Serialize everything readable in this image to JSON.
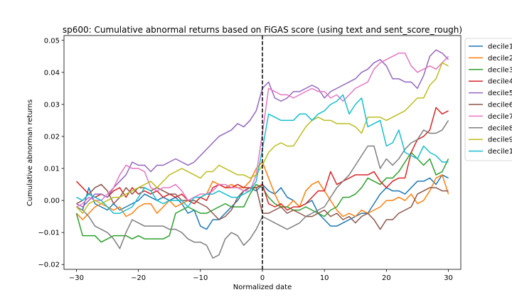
{
  "chart_data": {
    "type": "line",
    "title": "sp600: Cumulative abnormal returns based on FiGAS score (using text and sent_score_rough)",
    "xlabel": "Normalized date",
    "ylabel": "Cumulative abnorman returns",
    "xlim": [
      -32,
      32
    ],
    "ylim": [
      -0.0215,
      0.0515
    ],
    "xticks": [
      -30,
      -20,
      -10,
      0,
      10,
      20,
      30
    ],
    "yticks": [
      -0.02,
      -0.01,
      0.0,
      0.01,
      0.02,
      0.03,
      0.04,
      0.05
    ],
    "ytick_labels": [
      "−0.02",
      "−0.01",
      "0.00",
      "0.01",
      "0.02",
      "0.03",
      "0.04",
      "0.05"
    ],
    "xtick_labels": [
      "−30",
      "−20",
      "−10",
      "0",
      "10",
      "20",
      "30"
    ],
    "vline": {
      "x": 0,
      "style": "dashed",
      "color": "#000000"
    },
    "grid": false,
    "legend_placement": "right, outside top",
    "x": [
      -30,
      -29,
      -28,
      -27,
      -26,
      -25,
      -24,
      -23,
      -22,
      -21,
      -20,
      -19,
      -18,
      -17,
      -16,
      -15,
      -14,
      -13,
      -12,
      -11,
      -10,
      -9,
      -8,
      -7,
      -6,
      -5,
      -4,
      -3,
      -2,
      -1,
      0,
      1,
      2,
      3,
      4,
      5,
      6,
      7,
      8,
      9,
      10,
      11,
      12,
      13,
      14,
      15,
      16,
      17,
      18,
      19,
      20,
      21,
      22,
      23,
      24,
      25,
      26,
      27,
      28,
      29,
      30
    ],
    "series": [
      {
        "name": "decile1",
        "color": "#1f77b4",
        "values": [
          -0.002,
          -0.003,
          0.004,
          -0.001,
          -0.002,
          -0.003,
          -0.001,
          -0.003,
          -0.002,
          -0.001,
          0.0,
          0.002,
          0.001,
          0.0,
          0.001,
          0.0,
          0.001,
          -0.001,
          -0.004,
          -0.003,
          -0.008,
          -0.009,
          -0.006,
          -0.006,
          -0.004,
          -0.002,
          0.0,
          0.003,
          0.004,
          0.003,
          0.005,
          0.003,
          0.002,
          0.004,
          0.001,
          0.0,
          -0.002,
          -0.001,
          0.0,
          -0.004,
          -0.006,
          -0.008,
          -0.008,
          -0.007,
          -0.006,
          -0.005,
          -0.004,
          -0.004,
          -0.001,
          0.002,
          0.004,
          0.003,
          0.003,
          0.002,
          0.004,
          0.006,
          0.006,
          0.007,
          0.005,
          0.008,
          0.007
        ]
      },
      {
        "name": "decile2",
        "color": "#ff7f0e",
        "values": [
          -0.004,
          -0.006,
          -0.004,
          -0.002,
          -0.001,
          -0.002,
          -0.003,
          -0.002,
          -0.005,
          -0.004,
          -0.002,
          -0.001,
          -0.001,
          -0.004,
          -0.002,
          0.0,
          -0.002,
          -0.001,
          0.0,
          -0.001,
          0.001,
          0.002,
          0.006,
          0.005,
          0.004,
          0.005,
          0.004,
          0.004,
          0.006,
          0.01,
          0.012,
          0.007,
          0.002,
          -0.002,
          -0.002,
          0.0,
          -0.002,
          0.003,
          0.005,
          0.006,
          0.003,
          0.0,
          -0.003,
          -0.005,
          -0.004,
          -0.005,
          -0.003,
          -0.004,
          -0.003,
          -0.002,
          0.0,
          0.0,
          0.001,
          0.0,
          0.002,
          -0.001,
          0.0,
          0.003,
          0.007,
          0.008,
          0.002
        ]
      },
      {
        "name": "decile3",
        "color": "#2ca02c",
        "values": [
          -0.004,
          -0.011,
          -0.011,
          -0.011,
          -0.013,
          -0.012,
          -0.011,
          -0.011,
          -0.011,
          -0.012,
          -0.011,
          -0.012,
          -0.012,
          -0.012,
          -0.012,
          -0.011,
          -0.004,
          -0.003,
          -0.002,
          -0.003,
          -0.004,
          -0.004,
          -0.003,
          -0.002,
          -0.001,
          -0.002,
          -0.002,
          -0.002,
          0.002,
          0.005,
          0.004,
          0.001,
          -0.001,
          -0.002,
          -0.002,
          -0.003,
          -0.003,
          -0.002,
          -0.003,
          -0.004,
          -0.005,
          -0.003,
          -0.002,
          0.001,
          0.001,
          0.002,
          0.004,
          0.007,
          0.006,
          0.005,
          0.007,
          0.007,
          0.009,
          0.012,
          0.015,
          0.013,
          0.011,
          0.013,
          0.008,
          0.009,
          0.013
        ]
      },
      {
        "name": "decile4",
        "color": "#d62728",
        "values": [
          0.006,
          0.004,
          0.002,
          0.001,
          0.002,
          0.001,
          0.003,
          0.004,
          0.001,
          0.004,
          0.002,
          0.003,
          0.002,
          0.003,
          0.001,
          0.002,
          0.001,
          0.002,
          0.0,
          -0.001,
          0.001,
          0.0,
          0.004,
          0.005,
          0.004,
          0.004,
          0.005,
          0.004,
          0.004,
          0.004,
          0.005,
          -0.001,
          -0.002,
          -0.001,
          -0.003,
          -0.002,
          -0.002,
          -0.001,
          0.001,
          0.003,
          0.003,
          0.009,
          0.005,
          0.006,
          0.007,
          0.008,
          0.008,
          0.008,
          0.009,
          0.006,
          0.004,
          0.006,
          0.007,
          0.007,
          0.015,
          0.019,
          0.02,
          0.022,
          0.029,
          0.027,
          0.028
        ]
      },
      {
        "name": "decile5",
        "color": "#9467bd",
        "values": [
          -0.001,
          -0.002,
          0.0,
          0.002,
          0.002,
          0.001,
          0.004,
          0.006,
          0.008,
          0.012,
          0.011,
          0.011,
          0.009,
          0.011,
          0.011,
          0.012,
          0.013,
          0.012,
          0.011,
          0.012,
          0.014,
          0.016,
          0.018,
          0.02,
          0.021,
          0.022,
          0.024,
          0.023,
          0.025,
          0.028,
          0.035,
          0.037,
          0.032,
          0.031,
          0.032,
          0.034,
          0.034,
          0.035,
          0.036,
          0.035,
          0.032,
          0.034,
          0.035,
          0.036,
          0.037,
          0.038,
          0.04,
          0.041,
          0.043,
          0.044,
          0.042,
          0.038,
          0.038,
          0.037,
          0.037,
          0.035,
          0.039,
          0.045,
          0.047,
          0.046,
          0.044
        ]
      },
      {
        "name": "decile6",
        "color": "#8c564b",
        "values": [
          -0.001,
          0.0,
          0.002,
          0.004,
          0.005,
          0.003,
          -0.001,
          0.001,
          0.004,
          0.002,
          0.004,
          0.004,
          0.003,
          0.004,
          0.003,
          0.002,
          0.002,
          0.0,
          0.0,
          0.0,
          -0.001,
          -0.002,
          -0.004,
          -0.006,
          -0.005,
          -0.003,
          0.001,
          0.003,
          0.004,
          0.004,
          -0.004,
          -0.004,
          -0.003,
          -0.002,
          -0.004,
          -0.003,
          -0.004,
          -0.005,
          -0.005,
          -0.004,
          -0.003,
          -0.005,
          -0.004,
          -0.006,
          -0.005,
          -0.007,
          -0.005,
          -0.004,
          -0.006,
          -0.009,
          -0.006,
          -0.006,
          -0.004,
          -0.003,
          -0.002,
          0.002,
          0.003,
          0.004,
          0.004,
          0.003,
          0.003
        ]
      },
      {
        "name": "decile7",
        "color": "#e377c2",
        "values": [
          -0.002,
          -0.001,
          0.001,
          0.0,
          0.0,
          0.002,
          0.004,
          0.008,
          0.011,
          0.01,
          0.01,
          0.009,
          0.004,
          0.003,
          0.004,
          0.004,
          0.005,
          0.003,
          0.0,
          0.001,
          0.002,
          0.002,
          0.003,
          0.005,
          0.005,
          0.004,
          0.004,
          0.003,
          0.003,
          0.008,
          0.021,
          0.035,
          0.034,
          0.033,
          0.033,
          0.032,
          0.033,
          0.034,
          0.035,
          0.034,
          0.034,
          0.032,
          0.033,
          0.031,
          0.033,
          0.035,
          0.036,
          0.037,
          0.041,
          0.043,
          0.044,
          0.045,
          0.046,
          0.046,
          0.042,
          0.04,
          0.041,
          0.042,
          0.041,
          0.043,
          0.045
        ]
      },
      {
        "name": "decile8",
        "color": "#7f7f7f",
        "values": [
          -0.002,
          -0.003,
          -0.005,
          -0.008,
          -0.009,
          -0.01,
          -0.012,
          -0.015,
          -0.01,
          -0.006,
          -0.007,
          -0.008,
          -0.008,
          -0.008,
          -0.008,
          -0.009,
          -0.009,
          -0.01,
          -0.012,
          -0.013,
          -0.013,
          -0.014,
          -0.018,
          -0.017,
          -0.012,
          -0.01,
          -0.011,
          -0.014,
          -0.012,
          -0.009,
          -0.005,
          -0.006,
          -0.007,
          -0.008,
          -0.009,
          -0.008,
          -0.007,
          -0.005,
          -0.004,
          -0.003,
          -0.002,
          0.001,
          0.004,
          0.006,
          0.008,
          0.011,
          0.014,
          0.017,
          0.017,
          0.01,
          0.013,
          0.011,
          0.013,
          0.016,
          0.018,
          0.019,
          0.022,
          0.021,
          0.021,
          0.022,
          0.025
        ]
      },
      {
        "name": "decile9",
        "color": "#bcbd22",
        "values": [
          -0.002,
          -0.004,
          -0.001,
          0.0,
          -0.001,
          0.0,
          0.001,
          0.001,
          0.002,
          0.003,
          0.004,
          0.005,
          0.006,
          0.004,
          0.006,
          0.008,
          0.009,
          0.01,
          0.009,
          0.008,
          0.007,
          0.009,
          0.009,
          0.011,
          0.01,
          0.009,
          0.008,
          0.008,
          0.007,
          0.008,
          0.011,
          0.015,
          0.017,
          0.018,
          0.017,
          0.017,
          0.02,
          0.023,
          0.025,
          0.026,
          0.025,
          0.025,
          0.024,
          0.024,
          0.024,
          0.023,
          0.021,
          0.026,
          0.026,
          0.026,
          0.025,
          0.026,
          0.027,
          0.028,
          0.03,
          0.032,
          0.032,
          0.036,
          0.038,
          0.043,
          0.042
        ]
      },
      {
        "name": "decile10",
        "color": "#17becf",
        "values": [
          0.001,
          0.0,
          0.002,
          0.001,
          0.0,
          -0.002,
          -0.004,
          -0.004,
          -0.003,
          -0.002,
          0.001,
          0.004,
          0.003,
          0.0,
          -0.001,
          0.0,
          0.0,
          0.0,
          -0.002,
          0.001,
          0.001,
          0.002,
          0.002,
          0.003,
          0.002,
          0.001,
          0.001,
          0.002,
          0.003,
          0.006,
          0.016,
          0.027,
          0.026,
          0.025,
          0.025,
          0.025,
          0.027,
          0.027,
          0.025,
          0.027,
          0.028,
          0.03,
          0.031,
          0.033,
          0.027,
          0.03,
          0.032,
          0.023,
          0.024,
          0.025,
          0.017,
          0.018,
          0.022,
          0.015,
          0.014,
          0.013,
          0.017,
          0.015,
          0.014,
          0.012,
          0.012
        ]
      }
    ]
  }
}
